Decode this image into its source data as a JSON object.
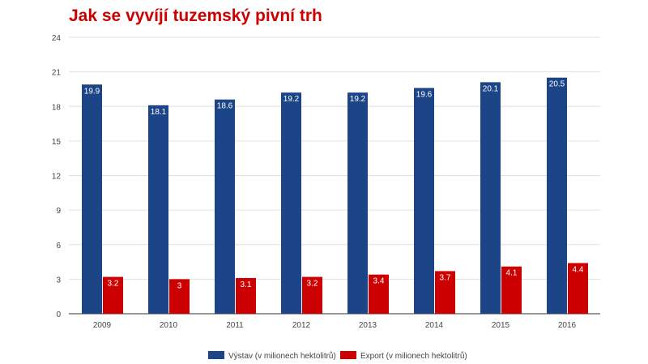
{
  "chart_data": {
    "type": "bar",
    "title": "Jak se vyvíjí tuzemský pivní trh",
    "categories": [
      "2009",
      "2010",
      "2011",
      "2012",
      "2013",
      "2014",
      "2015",
      "2016"
    ],
    "series": [
      {
        "name": "Výstav (v milionech hektolitrů)",
        "color": "#1c4587",
        "values": [
          19.9,
          18.1,
          18.6,
          19.2,
          19.2,
          19.6,
          20.1,
          20.5
        ]
      },
      {
        "name": "Export (v milionech hektolitrů)",
        "color": "#cc0000",
        "values": [
          3.2,
          3,
          3.1,
          3.2,
          3.4,
          3.7,
          4.1,
          4.4
        ]
      }
    ],
    "ylim": [
      0,
      24
    ],
    "yticks": [
      "0",
      "3",
      "6",
      "9",
      "12",
      "15",
      "18",
      "21",
      "24"
    ],
    "grid": true,
    "legend": "bottom",
    "data_labels": true
  }
}
